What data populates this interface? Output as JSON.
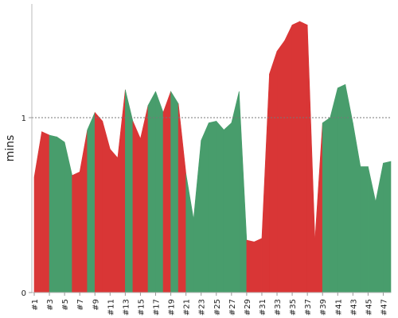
{
  "chart_data": {
    "type": "area",
    "ylabel": "mins",
    "xlabel": "",
    "title": "",
    "ylim": [
      0,
      1.65
    ],
    "yticks": [
      0,
      1
    ],
    "yticks_labels": [
      "0",
      "1"
    ],
    "reference_line": 1,
    "x_labels": [
      "#1",
      "#3",
      "#5",
      "#7",
      "#9",
      "#11",
      "#13",
      "#15",
      "#17",
      "#19",
      "#21",
      "#23",
      "#25",
      "#27",
      "#29",
      "#31",
      "#33",
      "#35",
      "#37",
      "#39",
      "#41",
      "#43",
      "#45",
      "#47"
    ],
    "grid": false,
    "colors": {
      "above": "#d93636",
      "below": "#489d6c"
    },
    "points": [
      {
        "x": 1,
        "y": 0.66,
        "color": "red"
      },
      {
        "x": 2,
        "y": 0.92,
        "color": "red"
      },
      {
        "x": 3,
        "y": 0.9,
        "color": "green"
      },
      {
        "x": 4,
        "y": 0.89,
        "color": "green"
      },
      {
        "x": 5,
        "y": 0.86,
        "color": "green"
      },
      {
        "x": 6,
        "y": 0.67,
        "color": "red"
      },
      {
        "x": 7,
        "y": 0.69,
        "color": "red"
      },
      {
        "x": 8,
        "y": 0.93,
        "color": "green"
      },
      {
        "x": 9,
        "y": 1.03,
        "color": "red"
      },
      {
        "x": 10,
        "y": 0.98,
        "color": "red"
      },
      {
        "x": 11,
        "y": 0.82,
        "color": "red"
      },
      {
        "x": 12,
        "y": 0.77,
        "color": "red"
      },
      {
        "x": 13,
        "y": 1.16,
        "color": "green"
      },
      {
        "x": 14,
        "y": 0.98,
        "color": "red"
      },
      {
        "x": 15,
        "y": 0.88,
        "color": "red"
      },
      {
        "x": 16,
        "y": 1.07,
        "color": "green"
      },
      {
        "x": 17,
        "y": 1.15,
        "color": "green"
      },
      {
        "x": 18,
        "y": 1.03,
        "color": "red"
      },
      {
        "x": 19,
        "y": 1.15,
        "color": "green"
      },
      {
        "x": 20,
        "y": 1.08,
        "color": "red"
      },
      {
        "x": 21,
        "y": 0.68,
        "color": "green"
      },
      {
        "x": 22,
        "y": 0.42,
        "color": "green"
      },
      {
        "x": 23,
        "y": 0.87,
        "color": "green"
      },
      {
        "x": 24,
        "y": 0.97,
        "color": "green"
      },
      {
        "x": 25,
        "y": 0.98,
        "color": "green"
      },
      {
        "x": 26,
        "y": 0.93,
        "color": "green"
      },
      {
        "x": 27,
        "y": 0.97,
        "color": "green"
      },
      {
        "x": 28,
        "y": 1.15,
        "color": "green"
      },
      {
        "x": 29,
        "y": 0.3,
        "color": "red"
      },
      {
        "x": 30,
        "y": 0.29,
        "color": "red"
      },
      {
        "x": 31,
        "y": 0.31,
        "color": "red"
      },
      {
        "x": 32,
        "y": 1.25,
        "color": "red"
      },
      {
        "x": 33,
        "y": 1.38,
        "color": "red"
      },
      {
        "x": 34,
        "y": 1.44,
        "color": "red"
      },
      {
        "x": 35,
        "y": 1.53,
        "color": "red"
      },
      {
        "x": 36,
        "y": 1.55,
        "color": "red"
      },
      {
        "x": 37,
        "y": 1.53,
        "color": "red"
      },
      {
        "x": 38,
        "y": 0.3,
        "color": "red"
      },
      {
        "x": 39,
        "y": 0.97,
        "color": "green"
      },
      {
        "x": 40,
        "y": 1.0,
        "color": "green"
      },
      {
        "x": 41,
        "y": 1.17,
        "color": "green"
      },
      {
        "x": 42,
        "y": 1.19,
        "color": "green"
      },
      {
        "x": 43,
        "y": 0.97,
        "color": "green"
      },
      {
        "x": 44,
        "y": 0.72,
        "color": "green"
      },
      {
        "x": 45,
        "y": 0.72,
        "color": "green"
      },
      {
        "x": 46,
        "y": 0.52,
        "color": "green"
      },
      {
        "x": 47,
        "y": 0.74,
        "color": "green"
      },
      {
        "x": 48,
        "y": 0.75,
        "color": "green"
      }
    ]
  }
}
